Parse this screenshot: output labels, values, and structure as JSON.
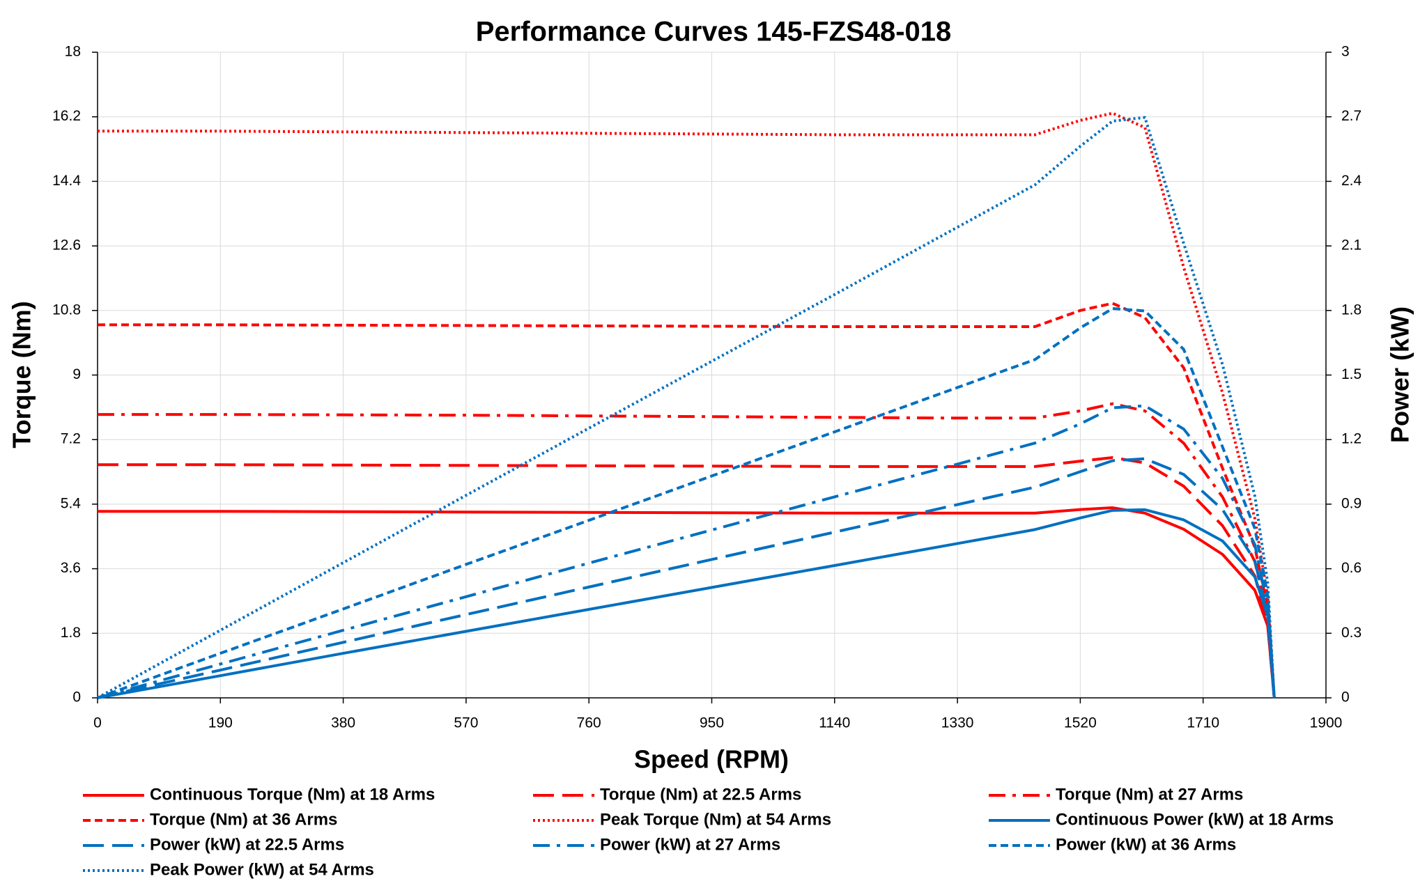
{
  "chart_data": {
    "type": "line",
    "title": "Performance Curves 145-FZS48-018",
    "x_label": "Speed (RPM)",
    "y_label": "Torque (Nm)",
    "y2_label": "Power (kW)",
    "xlim": [
      0,
      1900
    ],
    "xticks": [
      0,
      190,
      380,
      570,
      760,
      950,
      1140,
      1330,
      1520,
      1710,
      1900
    ],
    "ylim": [
      0,
      18
    ],
    "yticks": [
      0,
      1.8,
      3.6,
      5.4,
      7.2,
      9,
      10.8,
      12.6,
      14.4,
      16.2,
      18
    ],
    "y2lim": [
      0,
      3
    ],
    "y2ticks": [
      0,
      0.3,
      0.6,
      0.9,
      1.2,
      1.5,
      1.8,
      2.1,
      2.4,
      2.7,
      3
    ],
    "grid": true,
    "legend": "bottom",
    "x": [
      0,
      190,
      380,
      570,
      760,
      950,
      1140,
      1330,
      1450,
      1520,
      1570,
      1620,
      1680,
      1740,
      1790,
      1810,
      1820
    ],
    "series": [
      {
        "name": "Continuous Torque (Nm) at 18 Arms",
        "color": "#ff0000",
        "style": "solid",
        "values": [
          5.2,
          5.2,
          5.19,
          5.18,
          5.17,
          5.16,
          5.15,
          5.15,
          5.15,
          5.25,
          5.3,
          5.15,
          4.7,
          4.0,
          3.0,
          2.0,
          0
        ]
      },
      {
        "name": "Torque (Nm) at 22.5 Arms",
        "color": "#ff0000",
        "style": "dashed",
        "values": [
          6.5,
          6.5,
          6.49,
          6.48,
          6.47,
          6.46,
          6.45,
          6.45,
          6.45,
          6.6,
          6.7,
          6.55,
          5.9,
          4.8,
          3.4,
          2.0,
          0
        ]
      },
      {
        "name": "Torque (Nm) at 27 Arms",
        "color": "#ff0000",
        "style": "dashdot",
        "values": [
          7.9,
          7.9,
          7.89,
          7.88,
          7.86,
          7.84,
          7.82,
          7.8,
          7.8,
          8.0,
          8.2,
          8.0,
          7.1,
          5.6,
          3.8,
          2.2,
          0
        ]
      },
      {
        "name": "Torque (Nm) at 36 Arms",
        "color": "#ff0000",
        "style": "short-dashed",
        "values": [
          10.4,
          10.4,
          10.39,
          10.38,
          10.37,
          10.36,
          10.35,
          10.35,
          10.35,
          10.8,
          11.0,
          10.6,
          9.2,
          6.4,
          4.2,
          2.5,
          0
        ]
      },
      {
        "name": "Peak Torque (Nm) at 54 Arms",
        "color": "#ff0000",
        "style": "dotted",
        "values": [
          15.8,
          15.8,
          15.78,
          15.76,
          15.74,
          15.72,
          15.7,
          15.7,
          15.7,
          16.1,
          16.3,
          15.9,
          12.0,
          8.5,
          5.0,
          2.8,
          0
        ]
      },
      {
        "name": "Continuous Power (kW) at 18 Arms",
        "color": "#0070c0",
        "style": "solid",
        "axis": "y2",
        "values": [
          0,
          0.103,
          0.207,
          0.309,
          0.411,
          0.513,
          0.615,
          0.717,
          0.782,
          0.836,
          0.871,
          0.874,
          0.827,
          0.729,
          0.562,
          0.379,
          0
        ]
      },
      {
        "name": "Power (kW) at 22.5 Arms",
        "color": "#0070c0",
        "style": "dashed",
        "axis": "y2",
        "values": [
          0,
          0.129,
          0.258,
          0.387,
          0.515,
          0.643,
          0.77,
          0.898,
          0.979,
          1.051,
          1.102,
          1.111,
          1.038,
          0.875,
          0.637,
          0.379,
          0
        ]
      },
      {
        "name": "Power (kW) at 27 Arms",
        "color": "#0070c0",
        "style": "dashdot",
        "axis": "y2",
        "values": [
          0,
          0.157,
          0.314,
          0.47,
          0.626,
          0.78,
          0.934,
          1.086,
          1.184,
          1.273,
          1.348,
          1.357,
          1.249,
          1.02,
          0.712,
          0.417,
          0
        ]
      },
      {
        "name": "Power (kW) at 36 Arms",
        "color": "#0070c0",
        "style": "short-dashed",
        "axis": "y2",
        "values": [
          0,
          0.207,
          0.413,
          0.62,
          0.825,
          1.031,
          1.236,
          1.442,
          1.572,
          1.719,
          1.809,
          1.798,
          1.619,
          1.166,
          0.787,
          0.474,
          0
        ]
      },
      {
        "name": "Peak Power (kW) at 54 Arms",
        "color": "#0070c0",
        "style": "dotted",
        "axis": "y2",
        "values": [
          0,
          0.314,
          0.628,
          0.941,
          1.253,
          1.564,
          1.874,
          2.187,
          2.384,
          2.563,
          2.68,
          2.697,
          2.111,
          1.549,
          0.937,
          0.531,
          0
        ]
      }
    ]
  }
}
